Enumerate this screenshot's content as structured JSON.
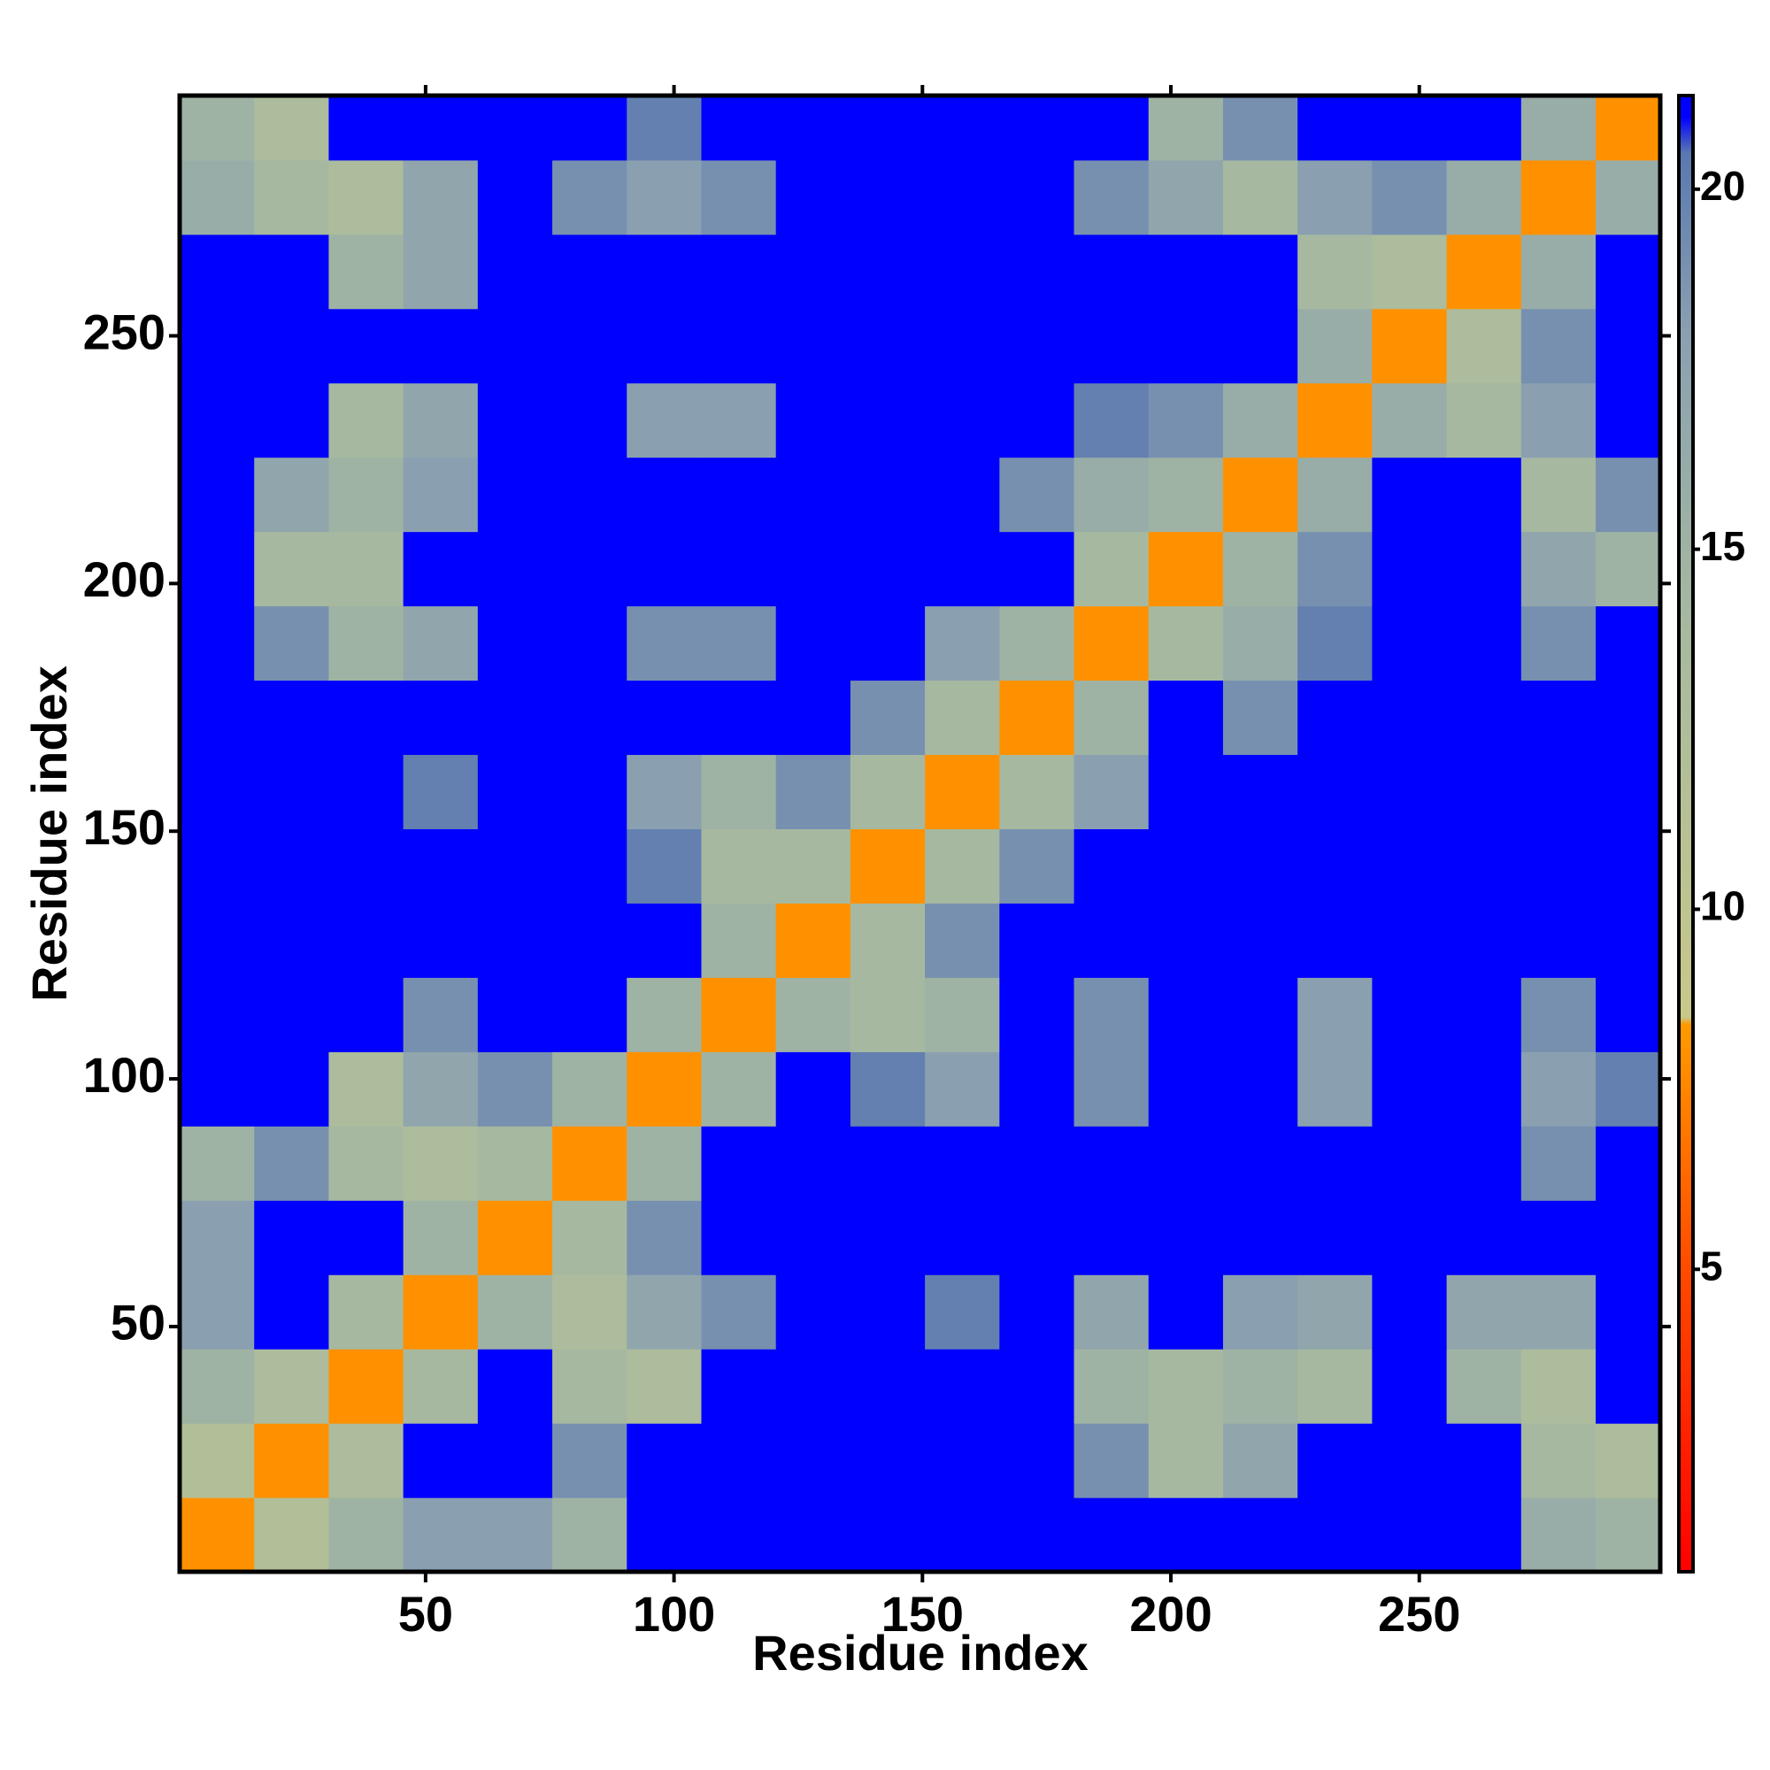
{
  "chart_data": {
    "type": "heatmap",
    "xlabel": "Residue index",
    "ylabel": "Residue index",
    "xbins": [
      0.5,
      15.5,
      30.5,
      45.5,
      60.5,
      75.5,
      90.5,
      105.5,
      120.5,
      135.5,
      150.5,
      165.5,
      180.5,
      195.5,
      210.5,
      225.5,
      240.5,
      255.5,
      270.5,
      285.5,
      298.5
    ],
    "ybins": [
      0.5,
      15.5,
      30.5,
      45.5,
      60.5,
      75.5,
      90.5,
      105.5,
      120.5,
      135.5,
      150.5,
      165.5,
      180.5,
      195.5,
      210.5,
      225.5,
      240.5,
      255.5,
      270.5,
      285.5,
      298.5
    ],
    "z": [
      [
        8,
        12,
        15,
        18,
        18,
        15,
        21,
        21,
        21,
        21,
        21,
        21,
        21,
        21,
        21,
        21,
        21,
        21,
        16,
        15
      ],
      [
        12,
        8,
        13,
        21,
        21,
        19,
        21,
        21,
        21,
        21,
        21,
        21,
        19,
        14,
        17,
        21,
        21,
        21,
        14,
        13
      ],
      [
        15,
        13,
        8,
        14,
        21,
        14,
        13,
        21,
        21,
        21,
        21,
        21,
        15,
        14,
        15,
        14,
        21,
        15,
        13,
        21
      ],
      [
        18,
        21,
        14,
        8,
        15,
        13,
        17,
        19,
        21,
        21,
        20,
        21,
        17,
        21,
        18,
        17,
        21,
        17,
        17,
        21
      ],
      [
        18,
        21,
        21,
        15,
        8,
        14,
        19,
        21,
        21,
        21,
        21,
        21,
        21,
        21,
        21,
        21,
        21,
        21,
        21,
        21
      ],
      [
        15,
        19,
        14,
        13,
        14,
        8,
        15,
        21,
        21,
        21,
        21,
        21,
        21,
        21,
        21,
        21,
        21,
        21,
        19,
        21
      ],
      [
        21,
        21,
        13,
        17,
        19,
        15,
        8,
        15,
        21,
        20,
        18,
        21,
        19,
        21,
        21,
        18,
        21,
        21,
        18,
        20
      ],
      [
        21,
        21,
        21,
        19,
        21,
        21,
        15,
        8,
        15,
        14,
        15,
        21,
        19,
        21,
        21,
        18,
        21,
        21,
        19,
        21
      ],
      [
        21,
        21,
        21,
        21,
        21,
        21,
        21,
        15,
        8,
        14,
        19,
        21,
        21,
        21,
        21,
        21,
        21,
        21,
        21,
        21
      ],
      [
        21,
        21,
        21,
        21,
        21,
        21,
        20,
        14,
        14,
        8,
        14,
        19,
        21,
        21,
        21,
        21,
        21,
        21,
        21,
        21
      ],
      [
        21,
        21,
        21,
        20,
        21,
        21,
        18,
        15,
        19,
        14,
        8,
        14,
        18,
        21,
        21,
        21,
        21,
        21,
        21,
        21
      ],
      [
        21,
        21,
        21,
        21,
        21,
        21,
        21,
        21,
        21,
        19,
        14,
        8,
        15,
        21,
        19,
        21,
        21,
        21,
        21,
        21
      ],
      [
        21,
        19,
        15,
        17,
        21,
        21,
        19,
        19,
        21,
        21,
        18,
        15,
        8,
        14,
        16,
        20,
        21,
        21,
        19,
        21
      ],
      [
        21,
        14,
        14,
        21,
        21,
        21,
        21,
        21,
        21,
        21,
        21,
        21,
        14,
        8,
        15,
        19,
        21,
        21,
        17,
        15
      ],
      [
        21,
        17,
        15,
        18,
        21,
        21,
        21,
        21,
        21,
        21,
        21,
        19,
        16,
        15,
        8,
        16,
        21,
        21,
        14,
        19
      ],
      [
        21,
        21,
        14,
        17,
        21,
        21,
        18,
        18,
        21,
        21,
        21,
        21,
        20,
        19,
        16,
        8,
        16,
        14,
        18,
        21
      ],
      [
        21,
        21,
        21,
        21,
        21,
        21,
        21,
        21,
        21,
        21,
        21,
        21,
        21,
        21,
        21,
        16,
        8,
        13,
        19,
        21
      ],
      [
        21,
        21,
        15,
        17,
        21,
        21,
        21,
        21,
        21,
        21,
        21,
        21,
        21,
        21,
        21,
        14,
        13,
        8,
        16,
        21
      ],
      [
        16,
        14,
        13,
        17,
        21,
        19,
        18,
        19,
        21,
        21,
        21,
        21,
        19,
        17,
        14,
        18,
        19,
        16,
        8,
        16
      ],
      [
        15,
        13,
        21,
        21,
        21,
        21,
        20,
        21,
        21,
        21,
        21,
        21,
        21,
        15,
        19,
        21,
        21,
        21,
        16,
        8
      ]
    ],
    "xlim": [
      0.5,
      298.5
    ],
    "ylim": [
      0.5,
      298.5
    ],
    "xticks": [
      50,
      100,
      150,
      200,
      250
    ],
    "yticks": [
      50,
      100,
      150,
      200,
      250
    ],
    "zlim": [
      0.8,
      21.3
    ],
    "zticks": [
      5,
      10,
      15,
      20
    ],
    "colorscale": [
      {
        "value": 0.8,
        "color": "#ff0000"
      },
      {
        "value": 5,
        "color": "#ff4a00"
      },
      {
        "value": 8.4,
        "color": "#ff9a00"
      },
      {
        "value": 8.5,
        "color": "#c8c88a"
      },
      {
        "value": 14,
        "color": "#a6b9a0"
      },
      {
        "value": 18,
        "color": "#8aa0b0"
      },
      {
        "value": 20.5,
        "color": "#5a78b0"
      },
      {
        "value": 21,
        "color": "#0000ff"
      }
    ]
  }
}
